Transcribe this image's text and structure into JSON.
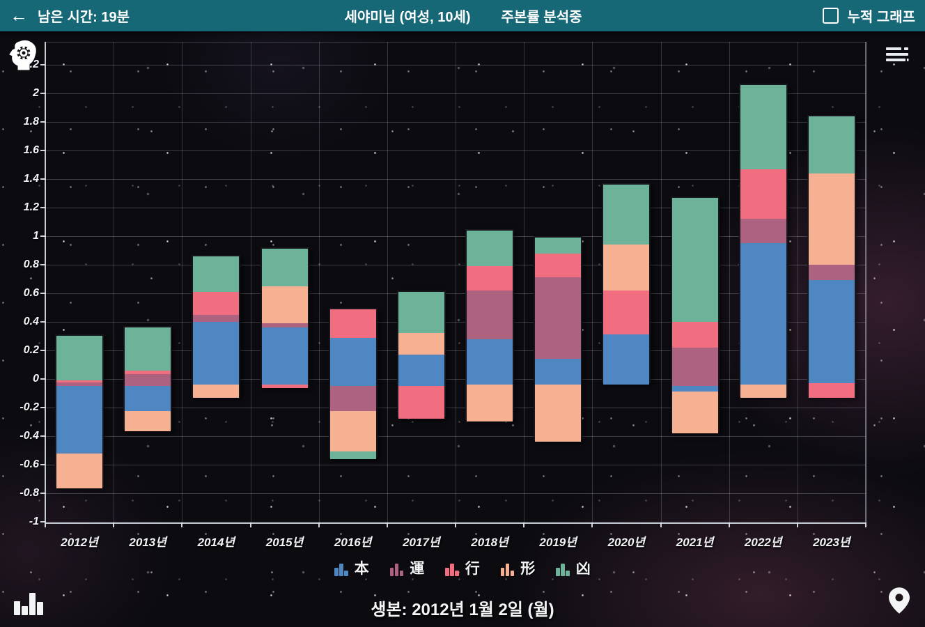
{
  "appbar": {
    "back_icon": "←",
    "time_label": "남은 시간: 19분",
    "title": "세야미님 (여성, 10세)",
    "status": "주본률 분석중",
    "checkbox_checked": false,
    "checkbox_label": "누적 그래프",
    "bar_color": "#176877"
  },
  "footer": {
    "birth_label": "생본: 2012년 1월 2일 (월)"
  },
  "icons": {
    "top_left": "gear-icon",
    "top_right": "list-toc-icon",
    "bottom_left": "bar-chart-icon",
    "bottom_right": "location-pin-icon"
  },
  "chart_data": {
    "type": "bar",
    "subtype": "stacked-floating",
    "title": "",
    "xlabel": "",
    "ylabel": "",
    "ylim": [
      -1,
      2.2
    ],
    "ytick_step": 0.2,
    "grid": true,
    "legend_position": "bottom",
    "categories": [
      "2012년",
      "2013년",
      "2014년",
      "2015년",
      "2016년",
      "2017년",
      "2018년",
      "2019년",
      "2020년",
      "2021년",
      "2022년",
      "2023년"
    ],
    "series_legend": [
      {
        "name": "本",
        "color": "#4e87c1"
      },
      {
        "name": "運",
        "color": "#ad6280"
      },
      {
        "name": "行",
        "color": "#f06e80"
      },
      {
        "name": "形",
        "color": "#f6b092"
      },
      {
        "name": "凶",
        "color": "#6cb39a"
      }
    ],
    "bars": [
      {
        "year": "2012년",
        "segments": [
          [
            "凶",
            0.31,
            0.0
          ],
          [
            "行",
            0.0,
            -0.015
          ],
          [
            "運",
            -0.015,
            -0.04
          ],
          [
            "本",
            -0.04,
            -0.51
          ],
          [
            "形",
            -0.51,
            -0.755
          ]
        ]
      },
      {
        "year": "2013년",
        "segments": [
          [
            "凶",
            0.37,
            0.07
          ],
          [
            "行",
            0.07,
            0.045
          ],
          [
            "運",
            0.045,
            -0.04
          ],
          [
            "本",
            -0.04,
            -0.215
          ],
          [
            "形",
            -0.215,
            -0.355
          ]
        ]
      },
      {
        "year": "2014년",
        "segments": [
          [
            "凶",
            0.87,
            0.62
          ],
          [
            "行",
            0.62,
            0.46
          ],
          [
            "運",
            0.46,
            0.41
          ],
          [
            "本",
            0.41,
            -0.03
          ],
          [
            "形",
            -0.03,
            -0.12
          ]
        ]
      },
      {
        "year": "2015년",
        "segments": [
          [
            "凶",
            0.92,
            0.66
          ],
          [
            "形",
            0.66,
            0.4
          ],
          [
            "運",
            0.4,
            0.37
          ],
          [
            "本",
            0.37,
            -0.03
          ],
          [
            "行",
            -0.03,
            -0.055
          ]
        ]
      },
      {
        "year": "2016년",
        "segments": [
          [
            "行",
            0.5,
            0.3
          ],
          [
            "本",
            0.3,
            -0.04
          ],
          [
            "運",
            -0.04,
            -0.215
          ],
          [
            "形",
            -0.215,
            -0.5
          ],
          [
            "凶",
            -0.5,
            -0.55
          ]
        ]
      },
      {
        "year": "2017년",
        "segments": [
          [
            "凶",
            0.62,
            0.33
          ],
          [
            "形",
            0.33,
            0.18
          ],
          [
            "本",
            0.18,
            -0.04
          ],
          [
            "行",
            -0.04,
            -0.27
          ]
        ]
      },
      {
        "year": "2018년",
        "segments": [
          [
            "凶",
            1.05,
            0.8
          ],
          [
            "行",
            0.8,
            0.63
          ],
          [
            "運",
            0.63,
            0.29
          ],
          [
            "本",
            0.29,
            -0.03
          ],
          [
            "形",
            -0.03,
            -0.29
          ]
        ]
      },
      {
        "year": "2019년",
        "segments": [
          [
            "凶",
            1.0,
            0.89
          ],
          [
            "行",
            0.89,
            0.72
          ],
          [
            "運",
            0.72,
            0.15
          ],
          [
            "本",
            0.15,
            -0.03
          ],
          [
            "形",
            -0.03,
            -0.43
          ]
        ]
      },
      {
        "year": "2020년",
        "segments": [
          [
            "凶",
            1.37,
            0.95
          ],
          [
            "形",
            0.95,
            0.63
          ],
          [
            "行",
            0.63,
            0.32
          ],
          [
            "本",
            0.32,
            -0.03
          ]
        ]
      },
      {
        "year": "2021년",
        "segments": [
          [
            "凶",
            1.28,
            0.41
          ],
          [
            "行",
            0.41,
            0.23
          ],
          [
            "運",
            0.23,
            -0.04
          ],
          [
            "本",
            -0.04,
            -0.08
          ],
          [
            "形",
            -0.08,
            -0.37
          ]
        ]
      },
      {
        "year": "2022년",
        "segments": [
          [
            "凶",
            2.07,
            1.48
          ],
          [
            "行",
            1.48,
            1.13
          ],
          [
            "運",
            1.13,
            0.96
          ],
          [
            "本",
            0.96,
            -0.03
          ],
          [
            "形",
            -0.03,
            -0.12
          ]
        ]
      },
      {
        "year": "2023년",
        "segments": [
          [
            "凶",
            1.85,
            1.45
          ],
          [
            "形",
            1.45,
            0.81
          ],
          [
            "運",
            0.81,
            0.7
          ],
          [
            "本",
            0.7,
            -0.02
          ],
          [
            "行",
            -0.02,
            -0.12
          ]
        ]
      }
    ]
  }
}
